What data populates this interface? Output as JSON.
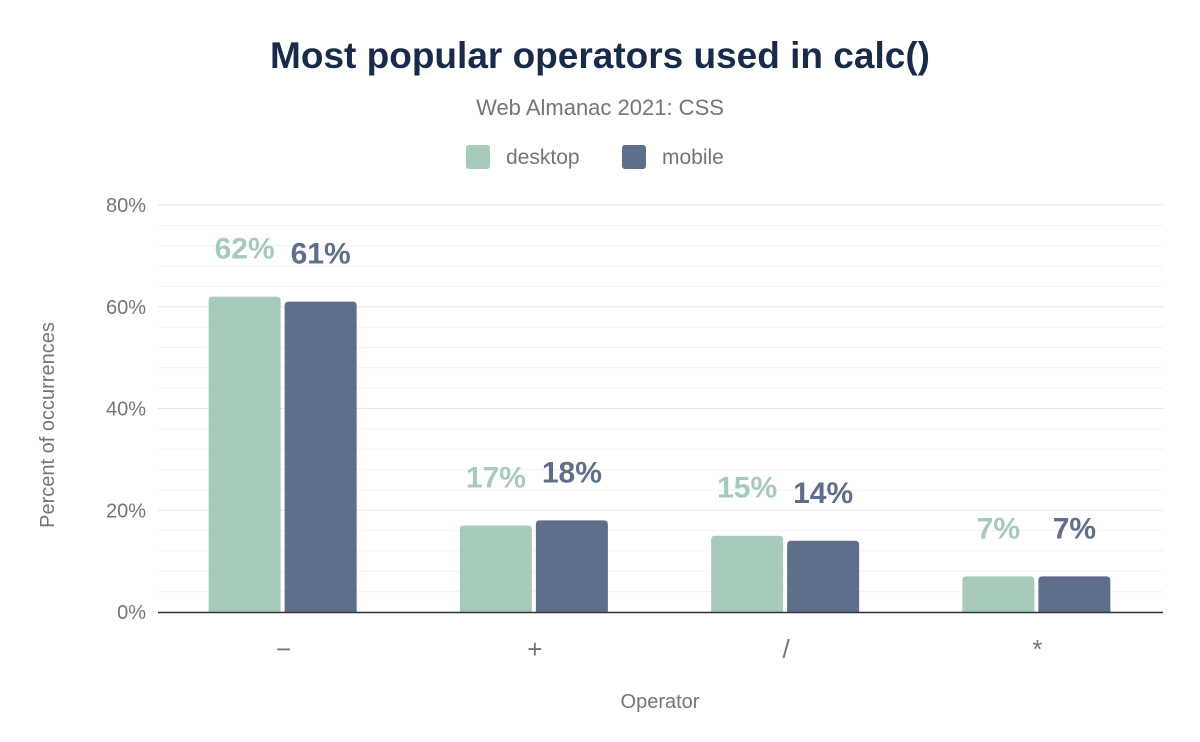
{
  "chart_data": {
    "type": "bar",
    "title": "Most popular operators used in calc()",
    "subtitle": "Web Almanac 2021: CSS",
    "xlabel": "Operator",
    "ylabel": "Percent of occurrences",
    "categories": [
      "−",
      "+",
      "/",
      "*"
    ],
    "series": [
      {
        "name": "desktop",
        "color": "#a7cabb",
        "values": [
          62,
          17,
          15,
          7
        ],
        "labels": [
          "62%",
          "17%",
          "15%",
          "7%"
        ]
      },
      {
        "name": "mobile",
        "color": "#5f6e8a",
        "values": [
          61,
          18,
          14,
          7
        ],
        "labels": [
          "61%",
          "18%",
          "14%",
          "7%"
        ]
      }
    ],
    "ylim": [
      0,
      80
    ],
    "yticks": [
      0,
      20,
      40,
      60,
      80
    ],
    "ytick_labels": [
      "0%",
      "20%",
      "40%",
      "60%",
      "80%"
    ],
    "grid": true,
    "legend": "top-center",
    "title_color": "#1a2b49"
  }
}
